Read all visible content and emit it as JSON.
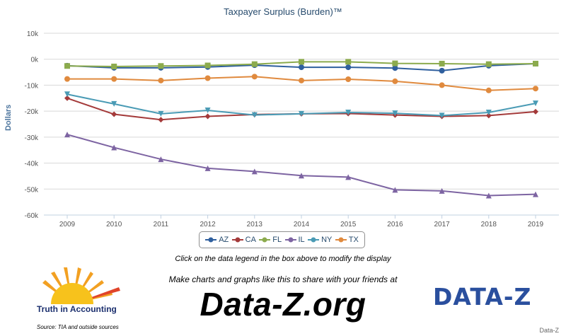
{
  "chart_data": {
    "type": "line",
    "title": "Taxpayer Surplus (Burden)™",
    "ylabel": "Dollars",
    "xlabel": "",
    "ylim": [
      -60000,
      10000
    ],
    "y_ticks": [
      10000,
      0,
      -10000,
      -20000,
      -30000,
      -40000,
      -50000,
      -60000
    ],
    "y_tick_labels": [
      "10k",
      "0k",
      "-10k",
      "-20k",
      "-30k",
      "-40k",
      "-50k",
      "-60k"
    ],
    "x": [
      "2009",
      "2010",
      "2011",
      "2012",
      "2013",
      "2014",
      "2015",
      "2016",
      "2017",
      "2018",
      "2019"
    ],
    "grid": true,
    "legend_position": "bottom-center",
    "series": [
      {
        "name": "AZ",
        "color": "#2f5f9e",
        "marker": "circle",
        "values": [
          -2500,
          -3300,
          -3300,
          -3000,
          -2300,
          -3100,
          -3100,
          -3400,
          -4400,
          -2500,
          -1700
        ]
      },
      {
        "name": "CA",
        "color": "#a43a3a",
        "marker": "diamond",
        "values": [
          -15000,
          -21200,
          -23300,
          -22000,
          -21300,
          -21000,
          -20900,
          -21500,
          -22000,
          -21700,
          -20200
        ]
      },
      {
        "name": "FL",
        "color": "#8cab4d",
        "marker": "square",
        "values": [
          -2600,
          -2800,
          -2600,
          -2400,
          -1900,
          -1000,
          -1000,
          -1600,
          -1700,
          -1900,
          -1700
        ]
      },
      {
        "name": "IL",
        "color": "#7d64a2",
        "marker": "triangle",
        "values": [
          -29000,
          -34000,
          -38500,
          -42000,
          -43200,
          -44800,
          -45400,
          -50300,
          -50700,
          -52500,
          -52000
        ]
      },
      {
        "name": "NY",
        "color": "#4a9bb5",
        "marker": "triangle-down",
        "values": [
          -13500,
          -17200,
          -21000,
          -19700,
          -21500,
          -21000,
          -20500,
          -20800,
          -21700,
          -20500,
          -17000
        ]
      },
      {
        "name": "TX",
        "color": "#e08a3e",
        "marker": "circle",
        "values": [
          -7600,
          -7600,
          -8200,
          -7300,
          -6700,
          -8200,
          -7700,
          -8500,
          -10000,
          -12000,
          -11300
        ]
      }
    ]
  },
  "captions": {
    "hint": "Click on the data legend in the box above to modify the display",
    "make": "Make charts and graphs like this to share with your friends at",
    "url": "Data-Z.org",
    "tia_logo_text": "Truth in Accounting",
    "source": "Source: TIA and outside sources",
    "dz_logo": "DATA-Z",
    "credit": "Data-Z"
  },
  "colors": {
    "title": "#274b6d",
    "grid": "#d8d8d8",
    "axis_label": "#4d759e"
  }
}
